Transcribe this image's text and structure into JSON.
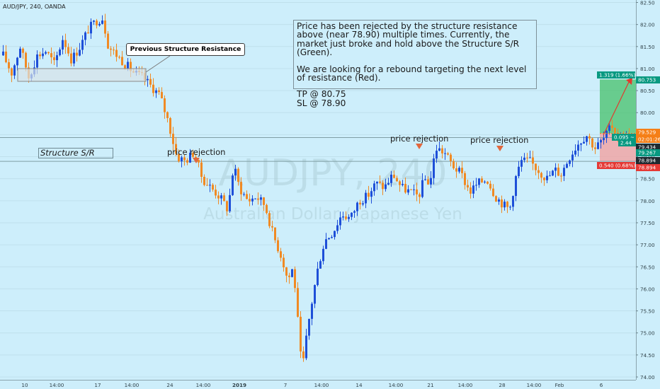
{
  "header": {
    "symbol_line": "AUD/JPY, 240, OANDA"
  },
  "watermark": {
    "main": "AUDJPY, 240",
    "sub": "Australian Dollar / Japanese Yen"
  },
  "note": {
    "line1": "Price has been rejected by the structure resistance above (near 78.90) multiple times. Currently, the market just broke and hold above the Structure S/R (Green).",
    "line2": "We are looking for a rebound targeting the next level of resistance (Red).",
    "tp": "TP @ 80.75",
    "sl": "SL @ 78.90"
  },
  "annotations": {
    "prev_resistance": "Previous Structure Resistance",
    "structure_sr": "Structure S/R",
    "rejections": [
      "price rejection",
      "price rejection",
      "price rejection"
    ]
  },
  "position": {
    "target_label": "1.319 (1.66%)",
    "stop_label": "0.540 (0.68%)",
    "mid_label_a": "0.095 ~",
    "mid_label_b": "2.44"
  },
  "price_labels": [
    {
      "text": "80.753",
      "color": "#089981"
    },
    {
      "text": "79.529",
      "color": "#f57f17"
    },
    {
      "text": "02:01:26",
      "color": "#f57f17"
    },
    {
      "text": "79.434",
      "color": "#1f2a30"
    },
    {
      "text": "79.267",
      "color": "#089981"
    },
    {
      "text": "78.894",
      "color": "#1f2a30"
    },
    {
      "text": "78.894",
      "color": "#e53935"
    }
  ],
  "colors": {
    "up": "#1e4fd8",
    "down": "#f08a24",
    "target": "#45c06a",
    "stop": "#f2a1a1",
    "sr_line": "#7f9ea5",
    "arrow": "#e23a2e"
  },
  "chart_data": {
    "type": "candlestick",
    "title": "AUD/JPY, 240, OANDA",
    "ylim": [
      74.0,
      82.5
    ],
    "y_ticks": [
      74.0,
      74.5,
      75.0,
      75.5,
      76.0,
      76.5,
      77.0,
      77.5,
      78.0,
      78.5,
      79.0,
      79.5,
      80.0,
      80.5,
      81.0,
      81.5,
      82.0,
      82.5
    ],
    "x_ticks": [
      "10",
      "14:00",
      "17",
      "14:00",
      "24",
      "14:00",
      "2019",
      "7",
      "14:00",
      "14",
      "14:00",
      "21",
      "14:00",
      "28",
      "14:00",
      "Feb",
      "6"
    ],
    "levels": {
      "structure_sr_upper": 79.434,
      "structure_sr_lower": 78.894,
      "take_profit": 80.753,
      "stop_loss": 78.894,
      "entry": 79.529
    },
    "path": [
      [
        0,
        81.3
      ],
      [
        3,
        80.9
      ],
      [
        6,
        81.5
      ],
      [
        9,
        80.8
      ],
      [
        12,
        81.3
      ],
      [
        15,
        81.4
      ],
      [
        18,
        81.1
      ],
      [
        21,
        81.7
      ],
      [
        24,
        81.2
      ],
      [
        27,
        81.5
      ],
      [
        30,
        81.9
      ],
      [
        33,
        82.1
      ],
      [
        35,
        82.15
      ],
      [
        37,
        81.5
      ],
      [
        40,
        81.3
      ],
      [
        43,
        81.1
      ],
      [
        46,
        80.9
      ],
      [
        49,
        80.8
      ],
      [
        52,
        80.6
      ],
      [
        55,
        80.4
      ],
      [
        58,
        79.8
      ],
      [
        61,
        79.0
      ],
      [
        64,
        78.9
      ],
      [
        67,
        79.1
      ],
      [
        70,
        78.5
      ],
      [
        73,
        78.3
      ],
      [
        76,
        78.1
      ],
      [
        79,
        77.8
      ],
      [
        81,
        78.8
      ],
      [
        83,
        78.3
      ],
      [
        86,
        78.0
      ],
      [
        89,
        78.1
      ],
      [
        92,
        77.9
      ],
      [
        95,
        77.2
      ],
      [
        98,
        76.7
      ],
      [
        100,
        76.2
      ],
      [
        102,
        76.5
      ],
      [
        105,
        74.1
      ],
      [
        107,
        75.1
      ],
      [
        109,
        75.9
      ],
      [
        111,
        76.6
      ],
      [
        113,
        77.1
      ],
      [
        116,
        77.3
      ],
      [
        119,
        77.7
      ],
      [
        122,
        77.6
      ],
      [
        125,
        78.0
      ],
      [
        128,
        78.1
      ],
      [
        131,
        78.4
      ],
      [
        134,
        78.3
      ],
      [
        137,
        78.6
      ],
      [
        140,
        78.3
      ],
      [
        143,
        78.2
      ],
      [
        146,
        78.1
      ],
      [
        148,
        78.5
      ],
      [
        150,
        78.4
      ],
      [
        152,
        79.2
      ],
      [
        155,
        79.1
      ],
      [
        158,
        78.8
      ],
      [
        161,
        78.6
      ],
      [
        164,
        78.2
      ],
      [
        167,
        78.4
      ],
      [
        170,
        78.5
      ],
      [
        173,
        78.1
      ],
      [
        176,
        77.9
      ],
      [
        178,
        77.8
      ],
      [
        180,
        78.5
      ],
      [
        182,
        78.9
      ],
      [
        185,
        78.9
      ],
      [
        188,
        78.7
      ],
      [
        191,
        78.5
      ],
      [
        194,
        78.7
      ],
      [
        196,
        78.6
      ],
      [
        199,
        79.0
      ],
      [
        202,
        79.3
      ],
      [
        205,
        79.5
      ],
      [
        208,
        79.2
      ],
      [
        211,
        79.4
      ],
      [
        214,
        79.7
      ],
      [
        217,
        79.4
      ],
      [
        220,
        79.5
      ]
    ]
  }
}
